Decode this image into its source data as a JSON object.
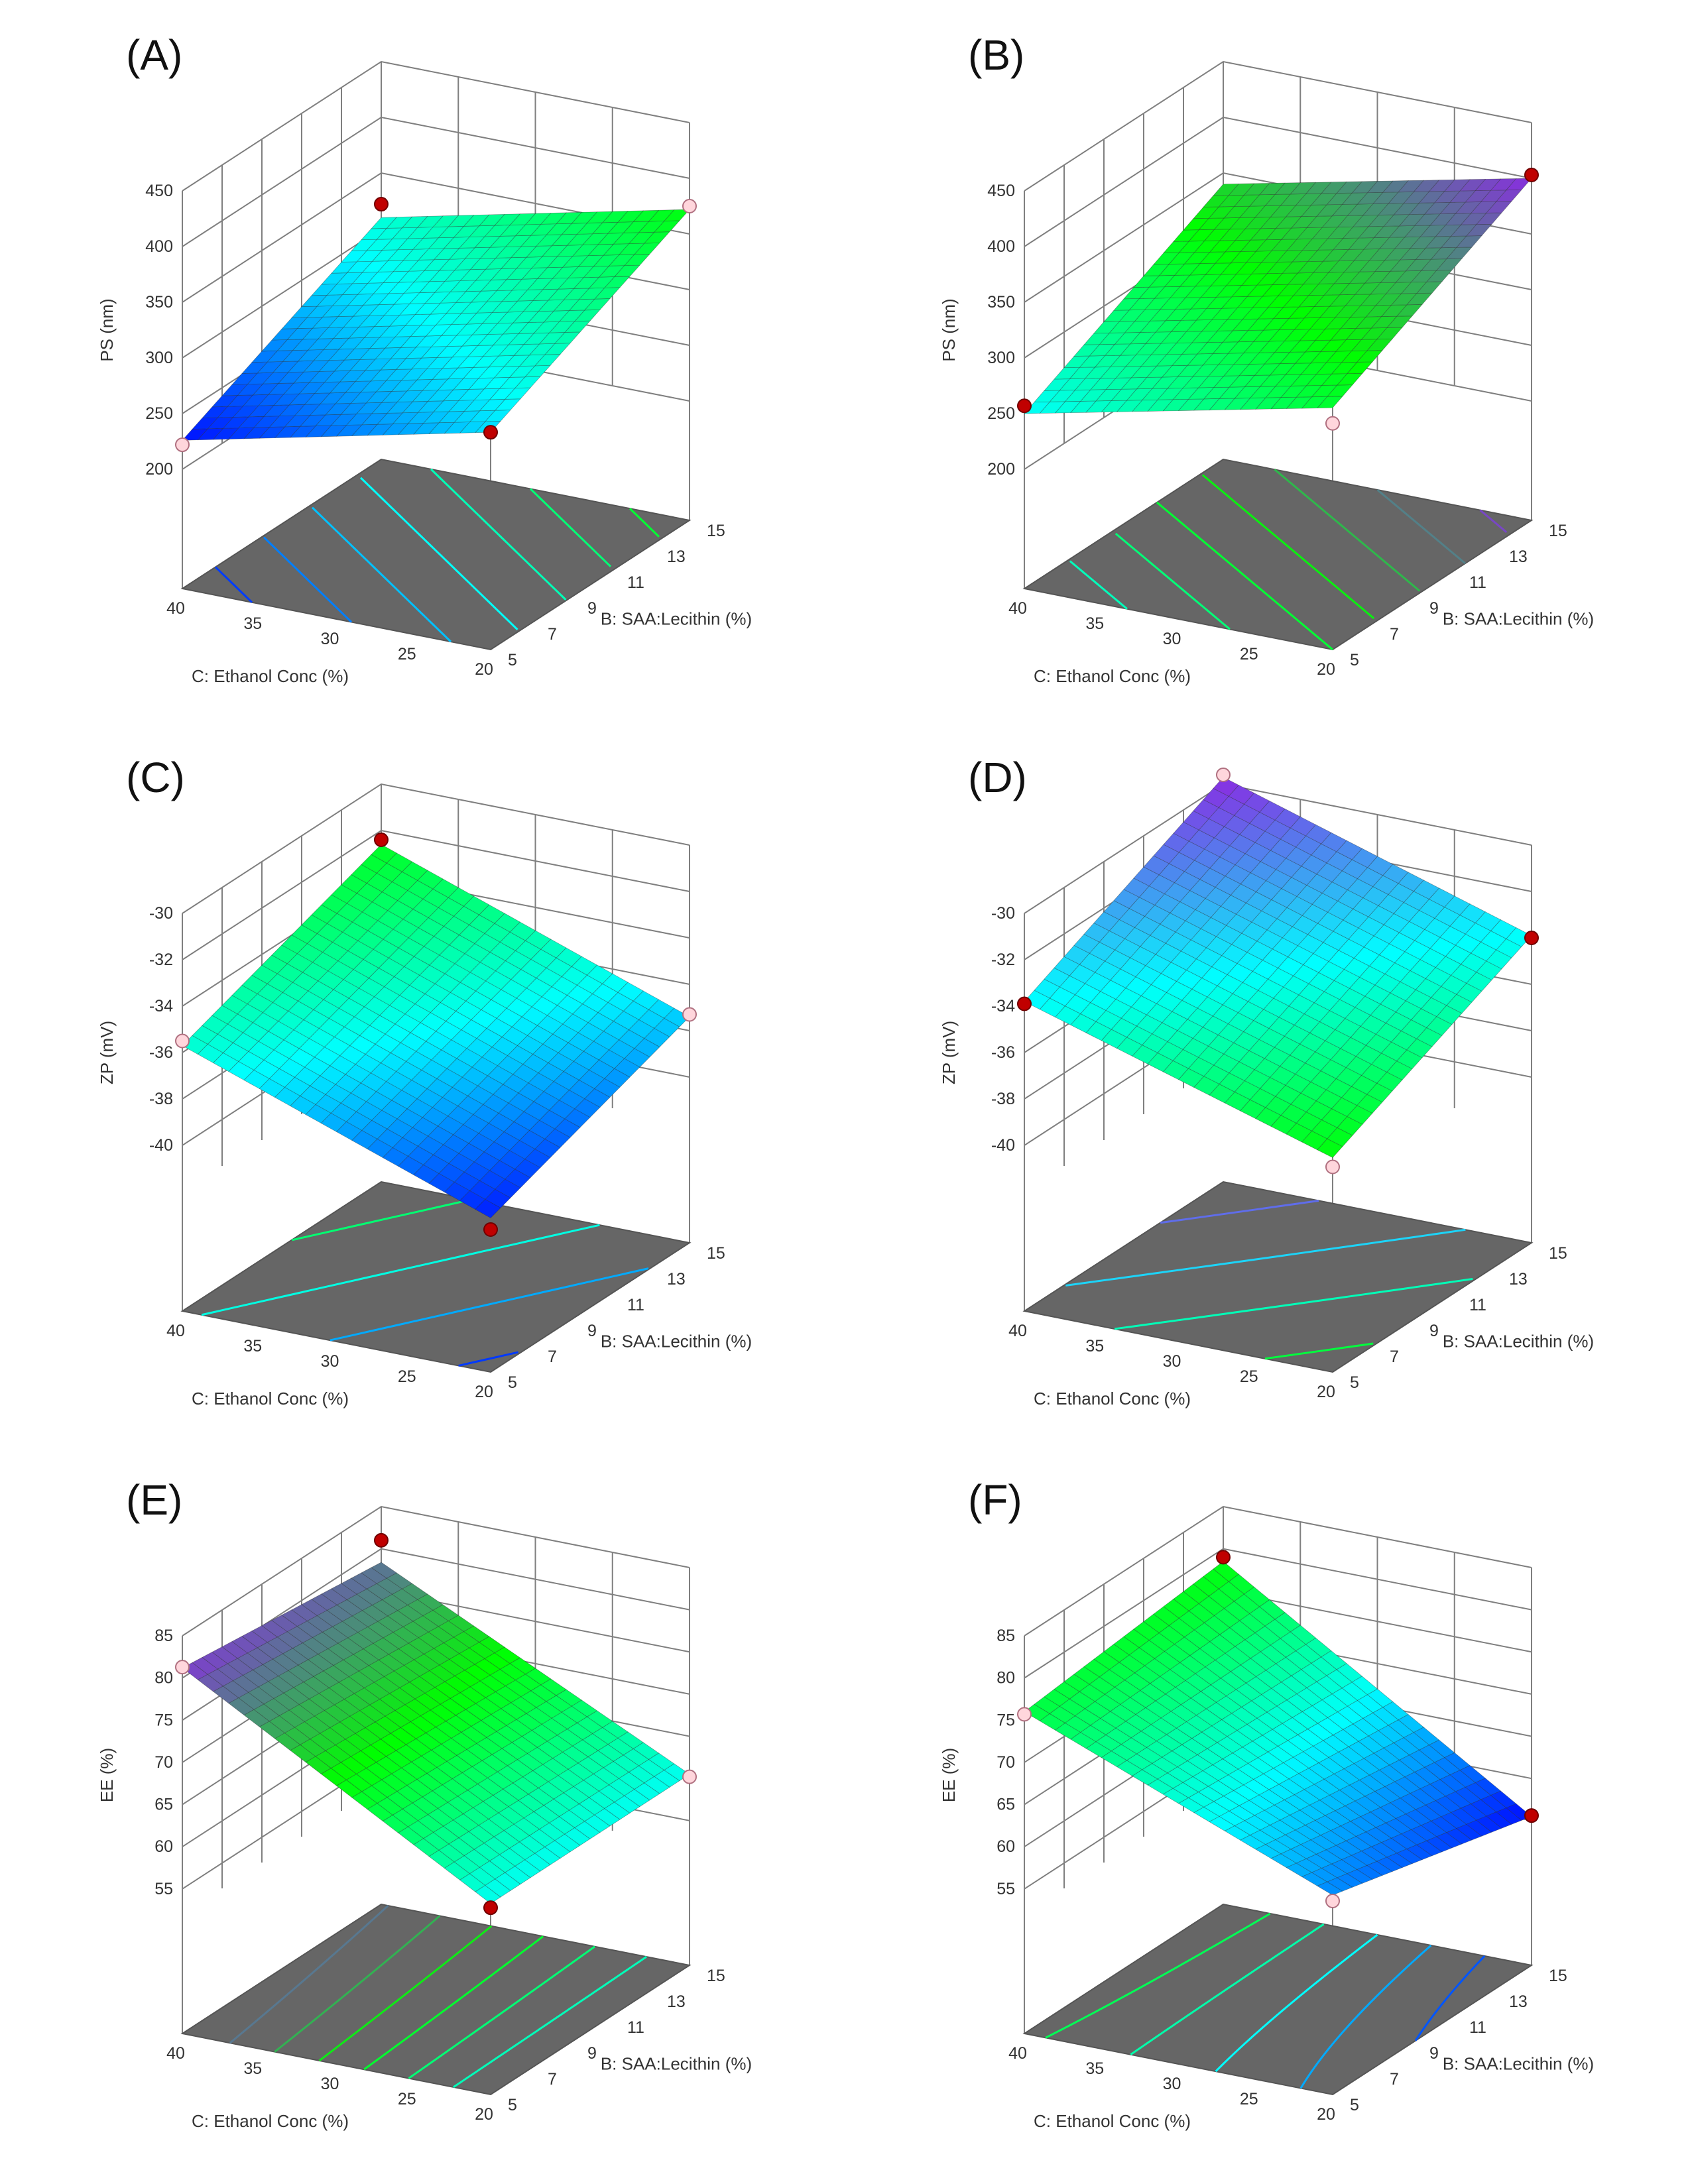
{
  "chart_data": [
    {
      "panel": "(A)",
      "type": "surface3d",
      "ylabel": "PS (nm)",
      "xlabel": "B: SAA:Lecithin (%)",
      "zlabel": "C: Ethanol Conc (%)",
      "x_ticks": [
        "5",
        "7",
        "9",
        "11",
        "13",
        "15"
      ],
      "z_ticks": [
        "20",
        "25",
        "30",
        "35",
        "40"
      ],
      "y_ticks": [
        "200",
        "250",
        "300",
        "350",
        "400",
        "450"
      ],
      "ylim": [
        200,
        450
      ],
      "xlim": [
        5,
        15
      ],
      "zlim": [
        20,
        40
      ],
      "corners": {
        "b5_c20": 288,
        "b15_c20": 372,
        "b5_c40": 226,
        "b15_c40": 310
      },
      "design_points": [
        {
          "b": 5,
          "c": 40,
          "value": 222,
          "color": "pink"
        },
        {
          "b": 5,
          "c": 20,
          "value": 288,
          "color": "red"
        },
        {
          "b": 15,
          "c": 40,
          "value": 322,
          "color": "red"
        },
        {
          "b": 15,
          "c": 20,
          "value": 375,
          "color": "pink"
        }
      ],
      "palette": [
        "#0000ff",
        "#00ffff",
        "#00ff00"
      ],
      "color_range": [
        222,
        375
      ],
      "contour_levels": [
        240,
        260,
        280,
        300,
        320,
        340,
        360
      ]
    },
    {
      "panel": "(B)",
      "type": "surface3d",
      "ylabel": "PS (nm)",
      "xlabel": "B: SAA:Lecithin (%)",
      "zlabel": "C: Ethanol Conc (%)",
      "x_ticks": [
        "5",
        "7",
        "9",
        "11",
        "13",
        "15"
      ],
      "z_ticks": [
        "20",
        "25",
        "30",
        "35",
        "40"
      ],
      "y_ticks": [
        "200",
        "250",
        "300",
        "350",
        "400",
        "450"
      ],
      "ylim": [
        200,
        450
      ],
      "xlim": [
        5,
        15
      ],
      "zlim": [
        20,
        40
      ],
      "corners": {
        "b5_c20": 310,
        "b15_c20": 400,
        "b5_c40": 250,
        "b15_c40": 340
      },
      "design_points": [
        {
          "b": 5,
          "c": 40,
          "value": 257,
          "color": "red"
        },
        {
          "b": 5,
          "c": 20,
          "value": 296,
          "color": "pink"
        },
        {
          "b": 15,
          "c": 20,
          "value": 403,
          "color": "red"
        }
      ],
      "palette": [
        "#00ffff",
        "#00ff00",
        "#8a2be2"
      ],
      "color_range": [
        250,
        400
      ],
      "contour_levels": [
        270,
        290,
        310,
        330,
        350,
        370,
        390
      ]
    },
    {
      "panel": "(C)",
      "type": "surface3d",
      "ylabel": "ZP (mV)",
      "xlabel": "B: SAA:Lecithin (%)",
      "zlabel": "C: Ethanol Conc (%)",
      "x_ticks": [
        "5",
        "7",
        "9",
        "11",
        "13",
        "15"
      ],
      "z_ticks": [
        "20",
        "25",
        "30",
        "35",
        "40"
      ],
      "y_ticks": [
        "-40",
        "-38",
        "-36",
        "-34",
        "-32",
        "-30"
      ],
      "ylim": [
        -42,
        -30
      ],
      "xlim": [
        5,
        15
      ],
      "zlim": [
        20,
        40
      ],
      "corners": {
        "b5_c20": -40.5,
        "b15_c20": -37.4,
        "b5_c40": -35.7,
        "b15_c40": -32.6
      },
      "design_points": [
        {
          "b": 5,
          "c": 40,
          "value": -35.5,
          "color": "pink"
        },
        {
          "b": 5,
          "c": 20,
          "value": -41.0,
          "color": "red"
        },
        {
          "b": 15,
          "c": 40,
          "value": -32.4,
          "color": "red"
        },
        {
          "b": 15,
          "c": 20,
          "value": -37.3,
          "color": "pink"
        }
      ],
      "palette": [
        "#0000ff",
        "#00ffff",
        "#00ff00"
      ],
      "color_range": [
        -41,
        -32
      ],
      "contour_levels": [
        -40,
        -38,
        -36,
        -34
      ]
    },
    {
      "panel": "(D)",
      "type": "surface3d",
      "ylabel": "ZP (mV)",
      "xlabel": "B: SAA:Lecithin (%)",
      "zlabel": "C: Ethanol Conc (%)",
      "x_ticks": [
        "5",
        "7",
        "9",
        "11",
        "13",
        "15"
      ],
      "z_ticks": [
        "20",
        "25",
        "30",
        "35",
        "40"
      ],
      "y_ticks": [
        "-40",
        "-38",
        "-36",
        "-34",
        "-32",
        "-30"
      ],
      "ylim": [
        -42,
        -30
      ],
      "xlim": [
        5,
        15
      ],
      "zlim": [
        20,
        40
      ],
      "corners": {
        "b5_c20": -37.9,
        "b15_c20": -33.9,
        "b5_c40": -33.8,
        "b15_c40": -29.7
      },
      "design_points": [
        {
          "b": 5,
          "c": 40,
          "value": -33.9,
          "color": "red"
        },
        {
          "b": 5,
          "c": 20,
          "value": -38.3,
          "color": "pink"
        },
        {
          "b": 15,
          "c": 40,
          "value": -29.6,
          "color": "pink"
        },
        {
          "b": 15,
          "c": 20,
          "value": -34.0,
          "color": "red"
        }
      ],
      "palette": [
        "#00ff00",
        "#00ffff",
        "#8a2be2"
      ],
      "color_range": [
        -38,
        -29.7
      ],
      "contour_levels": [
        -37,
        -35,
        -33,
        -31
      ]
    },
    {
      "panel": "(E)",
      "type": "surface3d",
      "ylabel": "EE (%)",
      "xlabel": "B: SAA:Lecithin (%)",
      "zlabel": "C: Ethanol Conc (%)",
      "x_ticks": [
        "5",
        "7",
        "9",
        "11",
        "13",
        "15"
      ],
      "z_ticks": [
        "20",
        "25",
        "30",
        "35",
        "40"
      ],
      "y_ticks": [
        "55",
        "60",
        "65",
        "70",
        "75",
        "80",
        "85"
      ],
      "ylim": [
        52,
        85
      ],
      "xlim": [
        5,
        15
      ],
      "zlim": [
        20,
        40
      ],
      "corners": {
        "b5_c20": 60.5,
        "b15_c20": 60.5,
        "b5_c40": 81.2,
        "b15_c40": 78.4
      },
      "design_points": [
        {
          "b": 5,
          "c": 40,
          "value": 81.3,
          "color": "pink"
        },
        {
          "b": 5,
          "c": 20,
          "value": 60.0,
          "color": "red"
        },
        {
          "b": 15,
          "c": 40,
          "value": 81.0,
          "color": "red"
        },
        {
          "b": 15,
          "c": 20,
          "value": 60.2,
          "color": "pink"
        }
      ],
      "palette": [
        "#00ffff",
        "#00ff00",
        "#8a2be2"
      ],
      "color_range": [
        60,
        82
      ],
      "contour_levels": [
        63,
        66,
        69,
        72,
        75,
        78
      ]
    },
    {
      "panel": "(F)",
      "type": "surface3d",
      "ylabel": "EE (%)",
      "xlabel": "B: SAA:Lecithin (%)",
      "zlabel": "C: Ethanol Conc (%)",
      "x_ticks": [
        "5",
        "7",
        "9",
        "11",
        "13",
        "15"
      ],
      "z_ticks": [
        "20",
        "25",
        "30",
        "35",
        "40"
      ],
      "y_ticks": [
        "55",
        "60",
        "65",
        "70",
        "75",
        "80",
        "85"
      ],
      "ylim": [
        52,
        85
      ],
      "xlim": [
        5,
        15
      ],
      "zlim": [
        20,
        40
      ],
      "corners": {
        "b5_c20": 61.5,
        "b15_c20": 55.5,
        "b5_c40": 76.0,
        "b15_c40": 78.5
      },
      "design_points": [
        {
          "b": 5,
          "c": 40,
          "value": 75.7,
          "color": "pink"
        },
        {
          "b": 5,
          "c": 20,
          "value": 60.8,
          "color": "pink"
        },
        {
          "b": 15,
          "c": 40,
          "value": 79.0,
          "color": "red"
        },
        {
          "b": 15,
          "c": 20,
          "value": 55.6,
          "color": "red"
        }
      ],
      "palette": [
        "#0000ff",
        "#00ffff",
        "#00ff00"
      ],
      "color_range": [
        55,
        79
      ],
      "contour_levels": [
        59,
        63,
        67,
        71,
        75
      ]
    }
  ]
}
